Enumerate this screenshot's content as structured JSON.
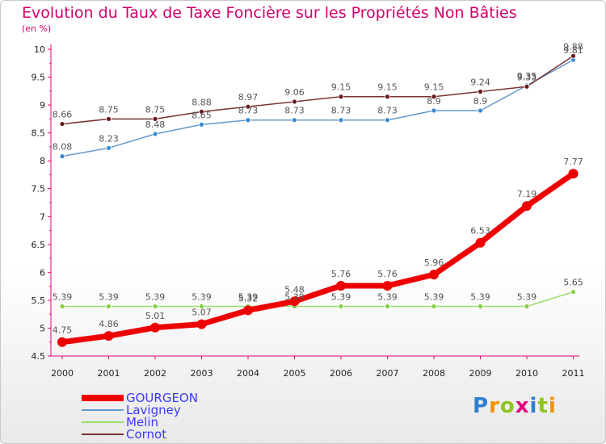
{
  "header": {
    "title": "Evolution du Taux de Taxe Foncière sur les Propriétés Non Bâties",
    "unit": "(en %)"
  },
  "logo": {
    "text": "Proxiti",
    "letters": [
      "P",
      "r",
      "o",
      "x",
      "i",
      "t",
      "i"
    ],
    "colors": [
      "#2e7fd0",
      "#f29100",
      "#8fc31f",
      "#e4007f",
      "#2e7fd0",
      "#8fc31f",
      "#f29100"
    ]
  },
  "chart_data": {
    "type": "line",
    "title": "Evolution du Taux de Taxe Foncière sur les Propriétés Non Bâties",
    "ylabel": "(en %)",
    "xlabel": "",
    "ylim": [
      4.5,
      10
    ],
    "yticks": [
      4.5,
      5,
      5.5,
      6,
      6.5,
      7,
      7.5,
      8,
      8.5,
      9,
      9.5,
      10
    ],
    "ytick_labels": [
      "4.5",
      "5",
      "5.5",
      "6",
      "6.5",
      "7",
      "7.5",
      "8",
      "8.5",
      "9",
      "9.5",
      "10"
    ],
    "x": [
      "2000",
      "2001",
      "2002",
      "2003",
      "2004",
      "2005",
      "2006",
      "2007",
      "2008",
      "2009",
      "2010",
      "2011"
    ],
    "series": [
      {
        "name": "Melin",
        "color": "#99dd66",
        "marker": "#88cc44",
        "width": 1.5,
        "r": 3,
        "values": [
          5.39,
          5.39,
          5.39,
          5.39,
          5.39,
          5.39,
          5.39,
          5.39,
          5.39,
          5.39,
          5.39,
          5.65
        ],
        "labels": [
          "5.39",
          "5.39",
          "5.39",
          "5.39",
          "5.39",
          "5.39",
          "5.39",
          "5.39",
          "5.39",
          "5.39",
          "5.39",
          "5.65"
        ]
      },
      {
        "name": "Lavigney",
        "color": "#6699cc",
        "marker": "#3a8ad0",
        "width": 1.5,
        "r": 3,
        "values": [
          8.08,
          8.23,
          8.48,
          8.65,
          8.73,
          8.73,
          8.73,
          8.73,
          8.9,
          8.9,
          9.35,
          9.81
        ],
        "labels": [
          "8.08",
          "8.23",
          "8.48",
          "8.65",
          "8.73",
          "8.73",
          "8.73",
          "8.73",
          "8.9",
          "8.9",
          "9.35",
          "9.81"
        ]
      },
      {
        "name": "Cornot",
        "color": "#7a3333",
        "marker": "#6a1a1a",
        "width": 1.5,
        "r": 3,
        "values": [
          8.66,
          8.75,
          8.75,
          8.88,
          8.97,
          9.06,
          9.15,
          9.15,
          9.15,
          9.24,
          9.33,
          9.88
        ],
        "labels": [
          "8.66",
          "8.75",
          "8.75",
          "8.88",
          "8.97",
          "9.06",
          "9.15",
          "9.15",
          "9.15",
          "9.24",
          "9.33",
          "9.88"
        ]
      },
      {
        "name": "GOURGEON",
        "color": "#ee0000",
        "marker": "#ee0000",
        "width": 7,
        "r": 6,
        "values": [
          4.75,
          4.86,
          5.01,
          5.07,
          5.32,
          5.48,
          5.76,
          5.76,
          5.96,
          6.53,
          7.19,
          7.77
        ],
        "labels": [
          "4.75",
          "4.86",
          "5.01",
          "5.07",
          "5.32",
          "5.48",
          "5.76",
          "5.76",
          "5.96",
          "6.53",
          "7.19",
          "7.77"
        ]
      }
    ],
    "legend": [
      {
        "name": "GOURGEON",
        "color": "#ee0000"
      },
      {
        "name": "Lavigney",
        "color": "#6699cc"
      },
      {
        "name": "Melin",
        "color": "#99dd66"
      },
      {
        "name": "Cornot",
        "color": "#7a3333"
      }
    ],
    "legend_position": "bottom-left",
    "grid": false
  }
}
